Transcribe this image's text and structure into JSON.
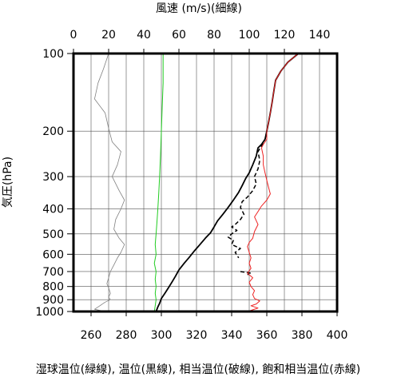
{
  "chart_data": {
    "type": "line",
    "title": "",
    "top_axis": {
      "label": "風速 (m/s)(細線)",
      "range": [
        0,
        150
      ],
      "ticks": [
        "0",
        "20",
        "40",
        "60",
        "80",
        "100",
        "120",
        "140"
      ],
      "tick_values": [
        0,
        20,
        40,
        60,
        80,
        100,
        120,
        140
      ]
    },
    "bottom_axis": {
      "label": "湿球温位(緑線), 温位(黒線), 相当温位(破線), 飽和相当温位(赤線)",
      "range": [
        250,
        400
      ],
      "ticks": [
        "260",
        "280",
        "300",
        "320",
        "340",
        "360",
        "380",
        "400"
      ],
      "tick_values": [
        260,
        280,
        300,
        320,
        340,
        360,
        380,
        400
      ]
    },
    "y_axis": {
      "label": "気圧(hPa)",
      "scale": "log",
      "range_hPa": [
        1000,
        100
      ],
      "ticks": [
        "100",
        "200",
        "300",
        "400",
        "500",
        "600",
        "700",
        "800",
        "900",
        "1000"
      ],
      "tick_values": [
        100,
        200,
        300,
        400,
        500,
        600,
        700,
        800,
        900,
        1000
      ],
      "grid_values": [
        100,
        200,
        300,
        400,
        500,
        600,
        700,
        800,
        900,
        1000
      ]
    },
    "grid": true,
    "series": [
      {
        "name": "風速",
        "axis": "top",
        "color": "#808080",
        "dash": "",
        "width": 0.8,
        "points": [
          [
            20,
            100
          ],
          [
            17,
            115
          ],
          [
            14,
            130
          ],
          [
            12,
            150
          ],
          [
            18,
            170
          ],
          [
            20,
            195
          ],
          [
            22,
            220
          ],
          [
            27,
            240
          ],
          [
            25,
            270
          ],
          [
            22,
            300
          ],
          [
            26,
            340
          ],
          [
            29,
            370
          ],
          [
            27,
            400
          ],
          [
            24,
            440
          ],
          [
            23,
            480
          ],
          [
            26,
            520
          ],
          [
            29,
            550
          ],
          [
            27,
            590
          ],
          [
            25,
            620
          ],
          [
            23,
            660
          ],
          [
            21,
            700
          ],
          [
            20,
            740
          ],
          [
            19,
            780
          ],
          [
            20,
            810
          ],
          [
            21,
            850
          ],
          [
            20,
            880
          ],
          [
            21,
            900
          ],
          [
            18,
            920
          ],
          [
            15,
            950
          ],
          [
            12,
            980
          ],
          [
            18,
            1000
          ]
        ]
      },
      {
        "name": "湿球温位",
        "axis": "bottom",
        "color": "#22cc22",
        "dash": "",
        "width": 1,
        "points": [
          [
            301,
            100
          ],
          [
            301,
            130
          ],
          [
            300.5,
            160
          ],
          [
            300,
            200
          ],
          [
            299.5,
            250
          ],
          [
            299,
            300
          ],
          [
            298.5,
            350
          ],
          [
            298,
            400
          ],
          [
            297.5,
            450
          ],
          [
            297,
            500
          ],
          [
            296.5,
            550
          ],
          [
            297,
            600
          ],
          [
            296,
            650
          ],
          [
            297,
            700
          ],
          [
            296.5,
            750
          ],
          [
            297,
            800
          ],
          [
            296.5,
            850
          ],
          [
            297,
            900
          ],
          [
            296.5,
            950
          ],
          [
            296,
            1000
          ]
        ]
      },
      {
        "name": "温位",
        "axis": "bottom",
        "color": "#000000",
        "dash": "",
        "width": 1.8,
        "points": [
          [
            378,
            100
          ],
          [
            372,
            108
          ],
          [
            368,
            117
          ],
          [
            365,
            127
          ],
          [
            364,
            140
          ],
          [
            363,
            155
          ],
          [
            362,
            170
          ],
          [
            361,
            185
          ],
          [
            360,
            200
          ],
          [
            359,
            215
          ],
          [
            357,
            225
          ],
          [
            355,
            232
          ],
          [
            354,
            250
          ],
          [
            352,
            270
          ],
          [
            350,
            290
          ],
          [
            348,
            305
          ],
          [
            346,
            325
          ],
          [
            344,
            345
          ],
          [
            341,
            370
          ],
          [
            338,
            395
          ],
          [
            335,
            420
          ],
          [
            332,
            445
          ],
          [
            330,
            470
          ],
          [
            328,
            495
          ],
          [
            325,
            520
          ],
          [
            322,
            550
          ],
          [
            319,
            580
          ],
          [
            316,
            615
          ],
          [
            313,
            650
          ],
          [
            310,
            690
          ],
          [
            308,
            730
          ],
          [
            306,
            770
          ],
          [
            304,
            810
          ],
          [
            302,
            850
          ],
          [
            300,
            890
          ],
          [
            299,
            930
          ],
          [
            298,
            960
          ],
          [
            297,
            1000
          ]
        ]
      },
      {
        "name": "相当温位",
        "axis": "bottom",
        "color": "#000000",
        "dash": "5,3",
        "width": 1.5,
        "points": [
          [
            360,
            200
          ],
          [
            359,
            215
          ],
          [
            357,
            228
          ],
          [
            355,
            240
          ],
          [
            356,
            260
          ],
          [
            355,
            280
          ],
          [
            353,
            300
          ],
          [
            354,
            320
          ],
          [
            352,
            340
          ],
          [
            349,
            360
          ],
          [
            346,
            375
          ],
          [
            345,
            395
          ],
          [
            347,
            420
          ],
          [
            345,
            440
          ],
          [
            342,
            460
          ],
          [
            340,
            470
          ],
          [
            343,
            485
          ],
          [
            340,
            500
          ],
          [
            338,
            515
          ],
          [
            341,
            530
          ],
          [
            340,
            550
          ],
          [
            345,
            570
          ],
          [
            342,
            590
          ],
          [
            344,
            620
          ]
        ],
        "extra_segments": [
          [
            [
              345,
              700
            ],
            [
              351,
              710
            ],
            [
              349,
              720
            ]
          ]
        ]
      },
      {
        "name": "飽和相当温位",
        "axis": "bottom",
        "color": "#ee2222",
        "dash": "",
        "width": 1,
        "points": [
          [
            378,
            100
          ],
          [
            372,
            108
          ],
          [
            368,
            117
          ],
          [
            365,
            127
          ],
          [
            364,
            140
          ],
          [
            363,
            155
          ],
          [
            362,
            170
          ],
          [
            361,
            185
          ],
          [
            360,
            200
          ],
          [
            360,
            215
          ],
          [
            358,
            225
          ],
          [
            357,
            232
          ],
          [
            358,
            250
          ],
          [
            358,
            270
          ],
          [
            359,
            290
          ],
          [
            360,
            310
          ],
          [
            361,
            330
          ],
          [
            362,
            350
          ],
          [
            360,
            370
          ],
          [
            357,
            390
          ],
          [
            355,
            410
          ],
          [
            353,
            430
          ],
          [
            355,
            460
          ],
          [
            353,
            490
          ],
          [
            352,
            520
          ],
          [
            350,
            540
          ],
          [
            349,
            560
          ],
          [
            350,
            590
          ],
          [
            351,
            620
          ],
          [
            350,
            650
          ],
          [
            351,
            680
          ],
          [
            349,
            710
          ],
          [
            352,
            740
          ],
          [
            350,
            770
          ],
          [
            351,
            800
          ],
          [
            353,
            830
          ],
          [
            352,
            860
          ],
          [
            353,
            890
          ],
          [
            356,
            910
          ],
          [
            354,
            935
          ],
          [
            351,
            950
          ],
          [
            355,
            970
          ],
          [
            352,
            985
          ],
          [
            350,
            995
          ],
          [
            349,
            1000
          ]
        ]
      }
    ]
  }
}
